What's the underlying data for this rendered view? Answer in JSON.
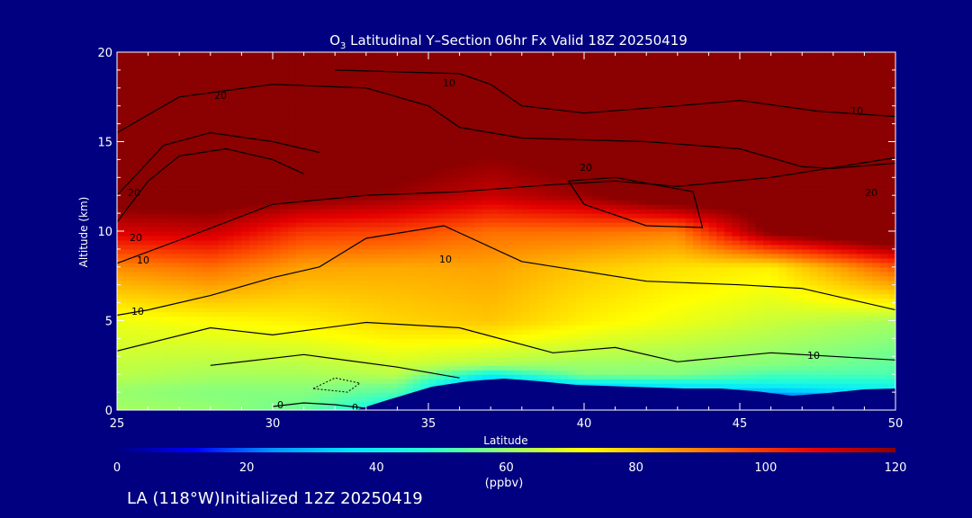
{
  "chart_data": {
    "type": "contour-section",
    "title_prefix": "O",
    "title_subscript": "3",
    "title_rest": " Latitudinal Y–Section 06hr  Fx Valid 18Z 20250419",
    "xlabel": "Latitude",
    "ylabel": "Altitude (km)",
    "xlim": [
      25,
      50
    ],
    "ylim": [
      0,
      20
    ],
    "x_ticks": [
      "25",
      "30",
      "35",
      "40",
      "45",
      "50"
    ],
    "y_ticks": [
      "0",
      "5",
      "10",
      "15",
      "20"
    ],
    "colorbar": {
      "ticks": [
        "0",
        "20",
        "40",
        "60",
        "80",
        "100",
        "120"
      ],
      "range": [
        0,
        120
      ],
      "units": "(ppbv)",
      "colors": [
        "#000080",
        "#0000ff",
        "#0096ff",
        "#00e6ff",
        "#28ffd2",
        "#96ff6e",
        "#ffff00",
        "#ffaa00",
        "#ff5000",
        "#e60000",
        "#8b0000"
      ]
    },
    "contour_labels": [
      "20",
      "10",
      "10",
      "20",
      "20",
      "20",
      "20",
      "10",
      "10",
      "10",
      "10",
      "0",
      "0"
    ],
    "field_columns": [
      {
        "lat": 25,
        "z": [
          0,
          1,
          2,
          5,
          8,
          10,
          12,
          13,
          20
        ],
        "v": [
          62,
          60,
          64,
          70,
          88,
          110,
          125,
          135,
          140
        ]
      },
      {
        "lat": 28,
        "z": [
          0,
          1,
          2,
          5,
          8,
          10,
          12,
          20
        ],
        "v": [
          60,
          58,
          62,
          72,
          92,
          112,
          126,
          140
        ]
      },
      {
        "lat": 31,
        "z": [
          0,
          1,
          2,
          5,
          8,
          10,
          12,
          20
        ],
        "v": [
          55,
          58,
          62,
          74,
          85,
          100,
          122,
          140
        ]
      },
      {
        "lat": 34,
        "z": [
          0,
          1,
          2,
          5,
          8,
          10,
          12,
          20
        ],
        "v": [
          40,
          52,
          64,
          78,
          84,
          98,
          118,
          140
        ]
      },
      {
        "lat": 37,
        "z": [
          0,
          1.7,
          2.5,
          5,
          8,
          10,
          12,
          20
        ],
        "v": [
          10,
          30,
          62,
          80,
          85,
          92,
          112,
          140
        ]
      },
      {
        "lat": 40,
        "z": [
          0,
          1.3,
          2,
          5,
          8,
          10,
          12,
          20
        ],
        "v": [
          10,
          32,
          58,
          74,
          80,
          92,
          118,
          140
        ]
      },
      {
        "lat": 43,
        "z": [
          0,
          1.3,
          2,
          5,
          8,
          10,
          12,
          20
        ],
        "v": [
          12,
          36,
          58,
          70,
          76,
          90,
          130,
          140
        ]
      },
      {
        "lat": 46,
        "z": [
          0,
          0.8,
          1.5,
          2.5,
          5,
          8,
          10,
          20
        ],
        "v": [
          10,
          20,
          44,
          58,
          66,
          74,
          122,
          140
        ]
      },
      {
        "lat": 50,
        "z": [
          0,
          1,
          2,
          5,
          8,
          10,
          20
        ],
        "v": [
          15,
          38,
          52,
          62,
          95,
          135,
          140
        ]
      }
    ],
    "contours": [
      {
        "label": "10",
        "points": [
          [
            25,
            5.3
          ],
          [
            26,
            5.6
          ],
          [
            28,
            6.4
          ],
          [
            30,
            7.4
          ],
          [
            31.5,
            8.0
          ],
          [
            33,
            9.6
          ],
          [
            35.5,
            10.3
          ],
          [
            38,
            8.3
          ],
          [
            42,
            7.2
          ],
          [
            45,
            7.0
          ],
          [
            47,
            6.8
          ],
          [
            50,
            5.6
          ]
        ]
      },
      {
        "label": "20",
        "points": [
          [
            25,
            8.2
          ],
          [
            27,
            9.5
          ],
          [
            30,
            11.5
          ],
          [
            33,
            12.0
          ],
          [
            36,
            12.2
          ],
          [
            39,
            12.6
          ],
          [
            41,
            12.8
          ],
          [
            43,
            12.5
          ],
          [
            46,
            13.0
          ],
          [
            50,
            14.1
          ]
        ]
      },
      {
        "label": "20",
        "points": [
          [
            39.5,
            12.8
          ],
          [
            41,
            13.0
          ],
          [
            43.5,
            12.2
          ],
          [
            43.8,
            10.2
          ],
          [
            42,
            10.3
          ],
          [
            40,
            11.5
          ],
          [
            39.5,
            12.8
          ]
        ]
      },
      {
        "label": "",
        "points": [
          [
            25,
            10.5
          ],
          [
            26,
            12.8
          ],
          [
            27,
            14.2
          ],
          [
            28.5,
            14.6
          ],
          [
            30,
            14.0
          ],
          [
            31,
            13.2
          ]
        ]
      },
      {
        "label": "",
        "points": [
          [
            25,
            12.0
          ],
          [
            26.5,
            14.8
          ],
          [
            28,
            15.5
          ],
          [
            30,
            15.0
          ],
          [
            31.5,
            14.4
          ]
        ]
      },
      {
        "label": "20",
        "points": [
          [
            25,
            15.5
          ],
          [
            27,
            17.5
          ],
          [
            30,
            18.2
          ],
          [
            33,
            18.0
          ],
          [
            35,
            17.0
          ],
          [
            36,
            15.8
          ]
        ]
      },
      {
        "label": "10",
        "points": [
          [
            32,
            19.0
          ],
          [
            36,
            18.8
          ],
          [
            37,
            18.2
          ],
          [
            38,
            17.0
          ],
          [
            40,
            16.6
          ],
          [
            43,
            17.0
          ],
          [
            45,
            17.3
          ],
          [
            47.5,
            16.7
          ],
          [
            50,
            16.4
          ]
        ]
      },
      {
        "label": "",
        "points": [
          [
            36,
            15.8
          ],
          [
            38,
            15.2
          ],
          [
            42,
            15.0
          ],
          [
            45,
            14.6
          ],
          [
            47,
            13.6
          ],
          [
            48,
            13.5
          ],
          [
            50,
            13.8
          ]
        ]
      },
      {
        "label": "10",
        "points": [
          [
            25,
            3.3
          ],
          [
            28,
            4.6
          ],
          [
            30,
            4.2
          ],
          [
            33,
            4.9
          ],
          [
            36,
            4.6
          ],
          [
            39,
            3.2
          ],
          [
            41,
            3.5
          ],
          [
            43,
            2.7
          ],
          [
            46,
            3.2
          ],
          [
            48,
            3.0
          ],
          [
            50,
            2.8
          ]
        ]
      },
      {
        "label": "",
        "points": [
          [
            28,
            2.5
          ],
          [
            31,
            3.1
          ],
          [
            34,
            2.4
          ],
          [
            36,
            1.8
          ]
        ]
      },
      {
        "label": "0",
        "points": [
          [
            30,
            0.2
          ],
          [
            31,
            0.4
          ],
          [
            32,
            0.3
          ],
          [
            33,
            0.1
          ]
        ]
      }
    ],
    "dashed_contours": [
      {
        "points": [
          [
            31.3,
            1.2
          ],
          [
            32,
            1.8
          ],
          [
            32.8,
            1.5
          ],
          [
            32.4,
            1.0
          ],
          [
            31.3,
            1.2
          ]
        ]
      }
    ],
    "footer_text": "LA (118°W)Initialized 12Z 20250419"
  }
}
